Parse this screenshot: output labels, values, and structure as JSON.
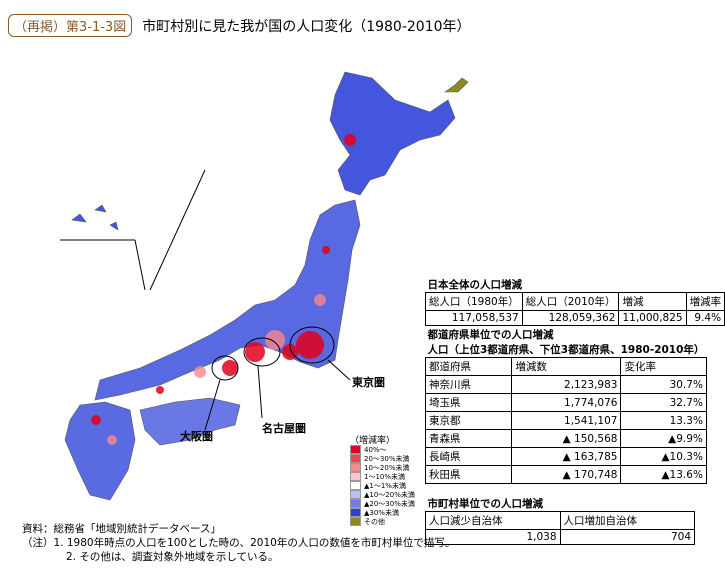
{
  "header": {
    "badge": "（再掲）第3-1-3図",
    "title": "市町村別に見た我が国の人口変化（1980-2010年）"
  },
  "map_labels": {
    "tokyo": "東京圏",
    "nagoya": "名古屋圏",
    "osaka": "大阪圏"
  },
  "legend": {
    "title": "（増減率）",
    "items": [
      {
        "label": "40%～",
        "color": "#e3001b"
      },
      {
        "label": "20～30%未満",
        "color": "#f0444f"
      },
      {
        "label": "10～20%未満",
        "color": "#f7888c"
      },
      {
        "label": "1～10%未満",
        "color": "#fbc6c8"
      },
      {
        "label": "▲1～1%未満",
        "color": "#ffffff"
      },
      {
        "label": "▲10～20%未満",
        "color": "#b9c0f2"
      },
      {
        "label": "▲20～30%未満",
        "color": "#6f7de8"
      },
      {
        "label": "▲30%未満",
        "color": "#2e3fd6"
      },
      {
        "label": "その他",
        "color": "#8c8c1e"
      }
    ]
  },
  "table1": {
    "title": "日本全体の人口増減",
    "header": [
      "総人口（1980年）",
      "総人口（2010年）",
      "増減",
      "増減率"
    ],
    "row": [
      "117,058,537",
      "128,059,362",
      "11,000,825",
      "9.4%"
    ]
  },
  "table2": {
    "title": "都道府県単位での人口増減",
    "subtitle": "人口（上位3都道府県、下位3都道府県、1980-2010年）",
    "header": [
      "都道府県",
      "増減数",
      "変化率"
    ],
    "rows": [
      [
        "神奈川県",
        "2,123,983",
        "30.7%"
      ],
      [
        "埼玉県",
        "1,774,076",
        "32.7%"
      ],
      [
        "東京都",
        "1,541,107",
        "13.3%"
      ],
      [
        "青森県",
        "▲ 150,568",
        "▲9.9%"
      ],
      [
        "長崎県",
        "▲ 163,785",
        "▲10.3%"
      ],
      [
        "秋田県",
        "▲ 170,748",
        "▲13.6%"
      ]
    ]
  },
  "table3": {
    "title": "市町村単位での人口増減",
    "header": [
      "人口減少自治体",
      "人口増加自治体"
    ],
    "row": [
      "1,038",
      "704"
    ]
  },
  "notes": [
    "資料：総務省「地域別統計データベース」",
    "（注）1. 1980年時点の人口を100とした時の、2010年の人口の数値を市町村単位で描写。",
    "2. その他は、調査対象外地域を示している。"
  ]
}
